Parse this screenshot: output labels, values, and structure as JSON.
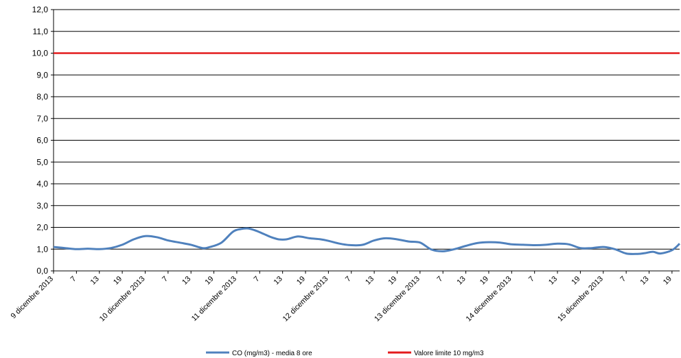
{
  "chart_data": {
    "type": "line",
    "title": "",
    "xlabel": "",
    "ylabel": "",
    "ylim": [
      0,
      12
    ],
    "y_ticks": [
      "0,0",
      "1,0",
      "2,0",
      "3,0",
      "4,0",
      "5,0",
      "6,0",
      "7,0",
      "8,0",
      "9,0",
      "10,0",
      "11,0",
      "12,0"
    ],
    "grid": true,
    "legend_position": "bottom",
    "x_tick_labels": [
      "9 dicembre 2013",
      "7",
      "13",
      "19",
      "10 dicembre 2013",
      "7",
      "13",
      "19",
      "11 dicembre 2013",
      "7",
      "13",
      "19",
      "12 dicembre 2013",
      "7",
      "13",
      "19",
      "13 dicembre 2013",
      "7",
      "13",
      "19",
      "14 dicembre 2013",
      "7",
      "13",
      "19",
      "15 dicembre 2013",
      "7",
      "13",
      "19"
    ],
    "x_hours": [
      0,
      6,
      12,
      18,
      24,
      30,
      36,
      42,
      48,
      54,
      60,
      66,
      72,
      78,
      84,
      90,
      96,
      102,
      108,
      114,
      120,
      126,
      132,
      138,
      144,
      150,
      156,
      162
    ],
    "series": [
      {
        "name": "CO (mg/m3) - media 8 ore",
        "color": "#4f81bd",
        "x": [
          0,
          3,
          6,
          9,
          12,
          15,
          18,
          21,
          24,
          27,
          30,
          33,
          36,
          39,
          41,
          44,
          47,
          49,
          51,
          53,
          55,
          57,
          59,
          61,
          64,
          67,
          70,
          72,
          75,
          78,
          81,
          84,
          87,
          90,
          93,
          96,
          99,
          102,
          105,
          108,
          111,
          114,
          117,
          120,
          123,
          126,
          129,
          132,
          135,
          138,
          141,
          144,
          147,
          150,
          153,
          155,
          157,
          159,
          162,
          164
        ],
        "y": [
          1.1,
          1.05,
          1.0,
          1.02,
          1.0,
          1.05,
          1.2,
          1.45,
          1.6,
          1.55,
          1.4,
          1.3,
          1.2,
          1.05,
          1.1,
          1.3,
          1.8,
          1.92,
          1.95,
          1.85,
          1.7,
          1.55,
          1.45,
          1.45,
          1.58,
          1.5,
          1.45,
          1.38,
          1.25,
          1.18,
          1.2,
          1.4,
          1.5,
          1.45,
          1.35,
          1.3,
          0.98,
          0.9,
          1.0,
          1.15,
          1.28,
          1.32,
          1.3,
          1.22,
          1.2,
          1.18,
          1.2,
          1.25,
          1.22,
          1.05,
          1.05,
          1.1,
          1.0,
          0.8,
          0.78,
          0.82,
          0.88,
          0.8,
          0.95,
          1.25
        ]
      },
      {
        "name": "Valore limite 10 mg/m3",
        "color": "#e31a1c",
        "x": [
          0,
          164
        ],
        "y": [
          10,
          10
        ]
      }
    ]
  }
}
